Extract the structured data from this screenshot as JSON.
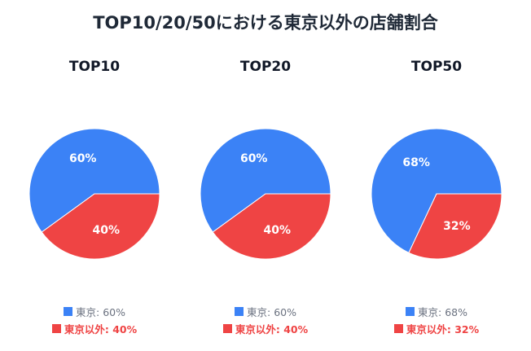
{
  "title": "TOP10/20/50における東京以外の店舗割合",
  "colors": {
    "tokyo": "#3b82f6",
    "outside": "#ef4444",
    "tokyo_legend_text": "#6b7280",
    "outside_legend_text": "#ef4444"
  },
  "chart_data": [
    {
      "type": "pie",
      "title": "TOP10",
      "slices": [
        {
          "name": "東京",
          "value": 60,
          "label": "60%",
          "legend": "東京: 60%"
        },
        {
          "name": "東京以外",
          "value": 40,
          "label": "40%",
          "legend": "東京以外: 40%"
        }
      ]
    },
    {
      "type": "pie",
      "title": "TOP20",
      "slices": [
        {
          "name": "東京",
          "value": 60,
          "label": "60%",
          "legend": "東京: 60%"
        },
        {
          "name": "東京以外",
          "value": 40,
          "label": "40%",
          "legend": "東京以外: 40%"
        }
      ]
    },
    {
      "type": "pie",
      "title": "TOP50",
      "slices": [
        {
          "name": "東京",
          "value": 68,
          "label": "68%",
          "legend": "東京: 68%"
        },
        {
          "name": "東京以外",
          "value": 32,
          "label": "32%",
          "legend": "東京以外: 32%"
        }
      ]
    }
  ]
}
